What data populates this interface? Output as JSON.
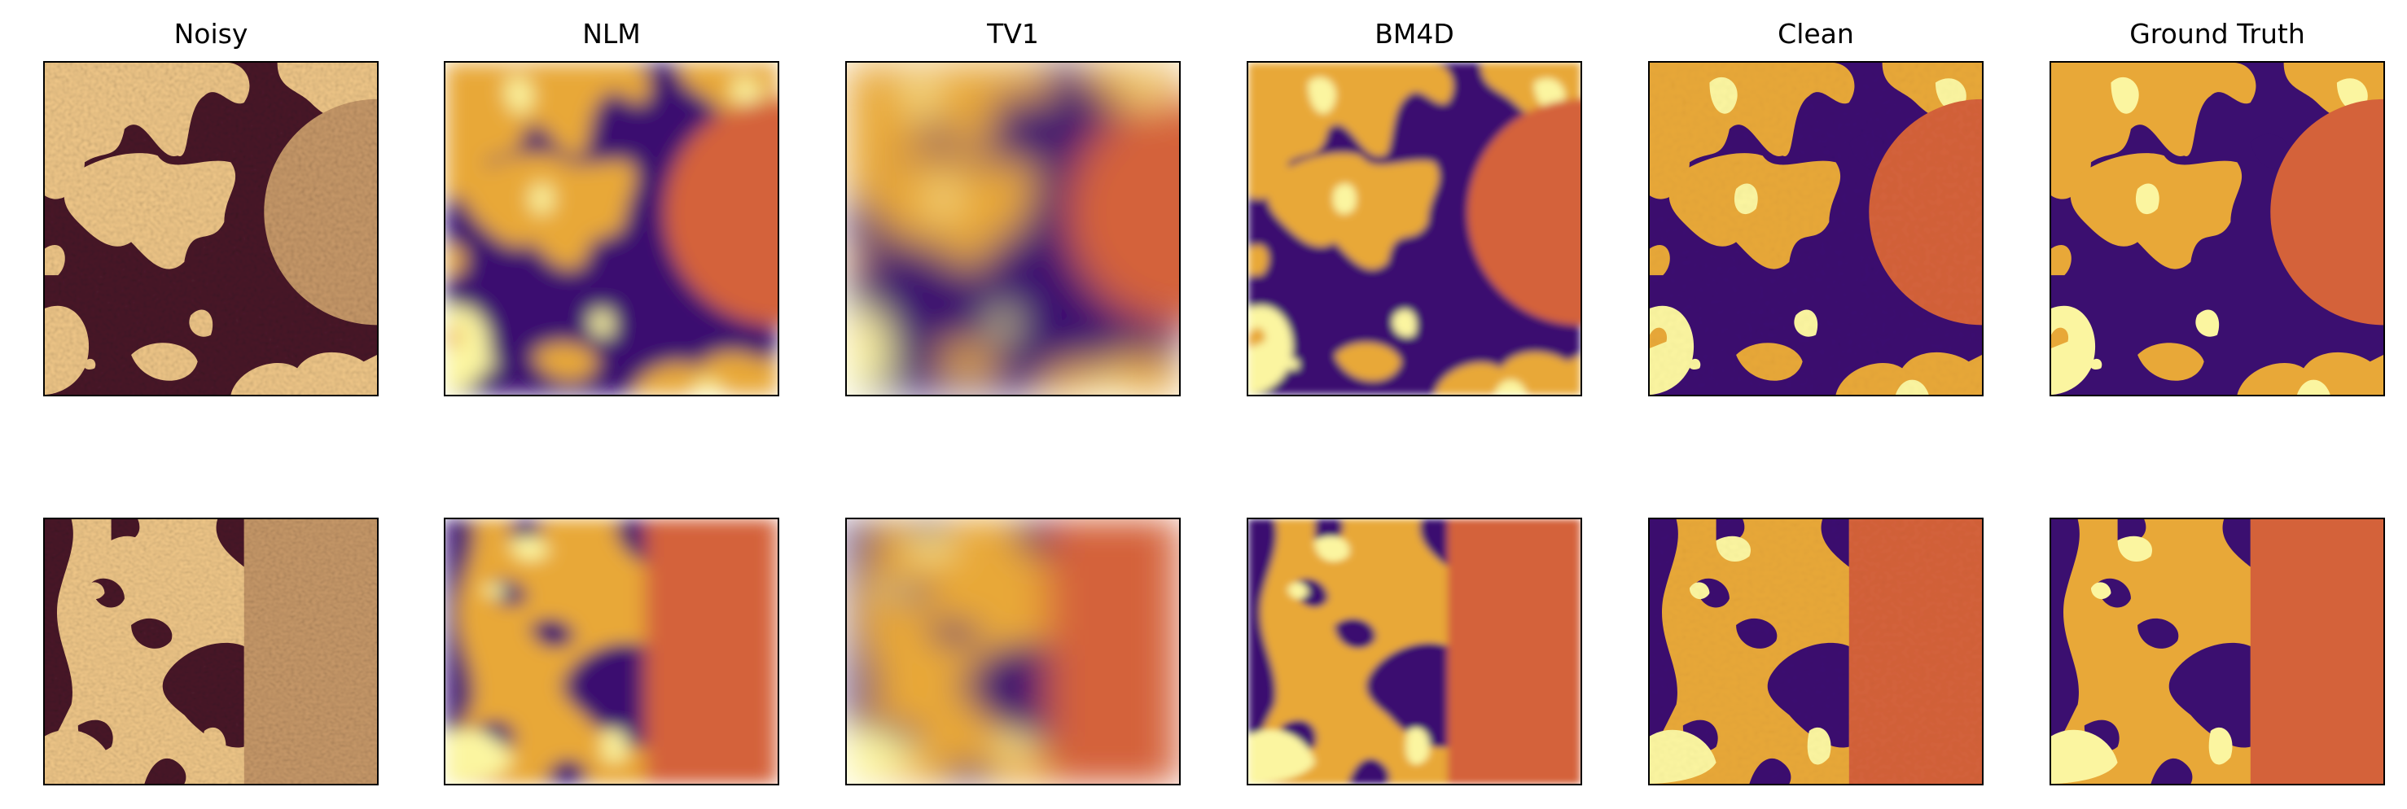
{
  "figure": {
    "columns": [
      {
        "id": "noisy",
        "title": "Noisy"
      },
      {
        "id": "nlm",
        "title": "NLM"
      },
      {
        "id": "tv1",
        "title": "TV1"
      },
      {
        "id": "bm4d",
        "title": "BM4D"
      },
      {
        "id": "clean",
        "title": "Clean"
      },
      {
        "id": "gt",
        "title": "Ground Truth"
      }
    ],
    "colormap": {
      "background": "#3b0f70",
      "phase_orange": "#e8a838",
      "phase_yellow": "#fbf5a0",
      "phase_disk": "#d4623a",
      "noisy_dark": "#4a1a2a",
      "noisy_light": "#f2c98a"
    }
  }
}
